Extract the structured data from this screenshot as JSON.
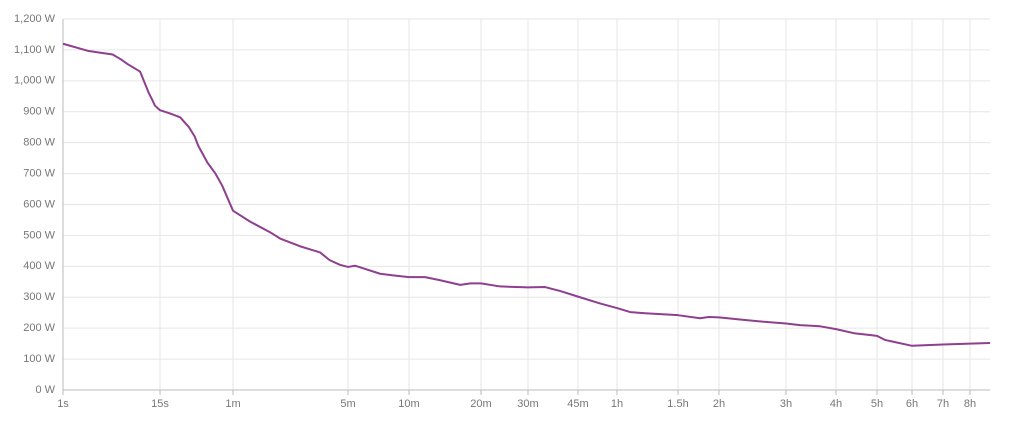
{
  "chart_data": {
    "type": "line",
    "x": [
      1,
      2,
      3,
      4,
      5,
      6,
      8.6,
      11,
      12,
      13,
      15,
      18,
      22,
      26,
      29,
      31,
      37,
      43,
      49,
      60,
      76,
      101,
      116,
      153,
      176,
      203,
      232,
      268,
      300,
      325,
      363,
      432,
      513,
      600,
      700,
      810,
      982,
      1085,
      1200,
      1414,
      1800,
      2066,
      2340,
      2700,
      3175,
      3600,
      3930,
      4400,
      5400,
      6300,
      6700,
      7200,
      8170,
      9200,
      10800,
      11700,
      13150,
      14400,
      15970,
      17300,
      18000,
      18760,
      21600,
      25200,
      28800,
      32400
    ],
    "series": [
      {
        "color": "#8e3f8e",
        "values": [
          1120,
          1097,
          1090,
          1085,
          1070,
          1055,
          1030,
          960,
          940,
          920,
          905,
          895,
          882,
          850,
          820,
          790,
          735,
          700,
          660,
          580,
          545,
          510,
          490,
          465,
          455,
          445,
          420,
          405,
          398,
          402,
          392,
          376,
          370,
          365,
          365,
          355,
          340,
          345,
          345,
          335,
          332,
          333,
          320,
          302,
          280,
          265,
          252,
          248,
          242,
          232,
          236,
          235,
          228,
          222,
          215,
          210,
          206,
          197,
          183,
          178,
          175,
          162,
          143,
          147,
          150,
          152
        ]
      }
    ],
    "xlim": [
      1,
      32400
    ],
    "xticks": [
      {
        "value": 1,
        "label": "1s"
      },
      {
        "value": 15,
        "label": "15s"
      },
      {
        "value": 60,
        "label": "1m"
      },
      {
        "value": 300,
        "label": "5m"
      },
      {
        "value": 600,
        "label": "10m"
      },
      {
        "value": 1200,
        "label": "20m"
      },
      {
        "value": 1800,
        "label": "30m"
      },
      {
        "value": 2700,
        "label": "45m"
      },
      {
        "value": 3600,
        "label": "1h"
      },
      {
        "value": 5400,
        "label": "1.5h"
      },
      {
        "value": 7200,
        "label": "2h"
      },
      {
        "value": 10800,
        "label": "3h"
      },
      {
        "value": 14400,
        "label": "4h"
      },
      {
        "value": 18000,
        "label": "5h"
      },
      {
        "value": 21600,
        "label": "6h"
      },
      {
        "value": 25200,
        "label": "7h"
      },
      {
        "value": 28800,
        "label": "8h"
      }
    ],
    "ylim": [
      0,
      1200
    ],
    "yticks": [
      {
        "value": 0,
        "label": "0 W"
      },
      {
        "value": 100,
        "label": "100 W"
      },
      {
        "value": 200,
        "label": "200 W"
      },
      {
        "value": 300,
        "label": "300 W"
      },
      {
        "value": 400,
        "label": "400 W"
      },
      {
        "value": 500,
        "label": "500 W"
      },
      {
        "value": 600,
        "label": "600 W"
      },
      {
        "value": 700,
        "label": "700 W"
      },
      {
        "value": 800,
        "label": "800 W"
      },
      {
        "value": 900,
        "label": "900 W"
      },
      {
        "value": 1000,
        "label": "1,000 W"
      },
      {
        "value": 1100,
        "label": "1,100 W"
      },
      {
        "value": 1200,
        "label": "1,200 W"
      }
    ],
    "grid": true
  }
}
